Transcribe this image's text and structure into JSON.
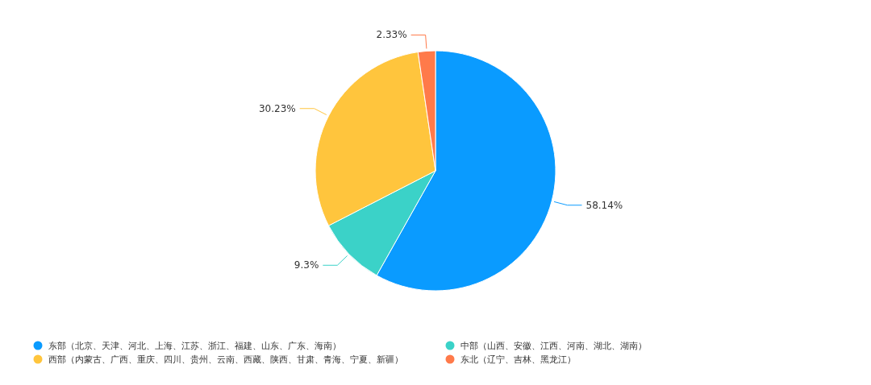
{
  "chart_data": {
    "type": "pie",
    "categories": [
      "东部（北京、天津、河北、上海、江苏、浙江、福建、山东、广东、海南）",
      "中部（山西、安徽、江西、河南、湖北、湖南）",
      "西部（内蒙古、广西、重庆、四川、贵州、云南、西藏、陕西、甘肃、青海、宁夏、新疆）",
      "东北（辽宁、吉林、黑龙江）"
    ],
    "values": [
      58.14,
      9.3,
      30.23,
      2.33
    ],
    "colors": [
      "#0a9bff",
      "#3bd2c8",
      "#ffc53d",
      "#ff7a4a"
    ],
    "value_labels": [
      "58.14%",
      "9.3%",
      "30.23%",
      "2.33%"
    ],
    "legend": "bottom"
  }
}
